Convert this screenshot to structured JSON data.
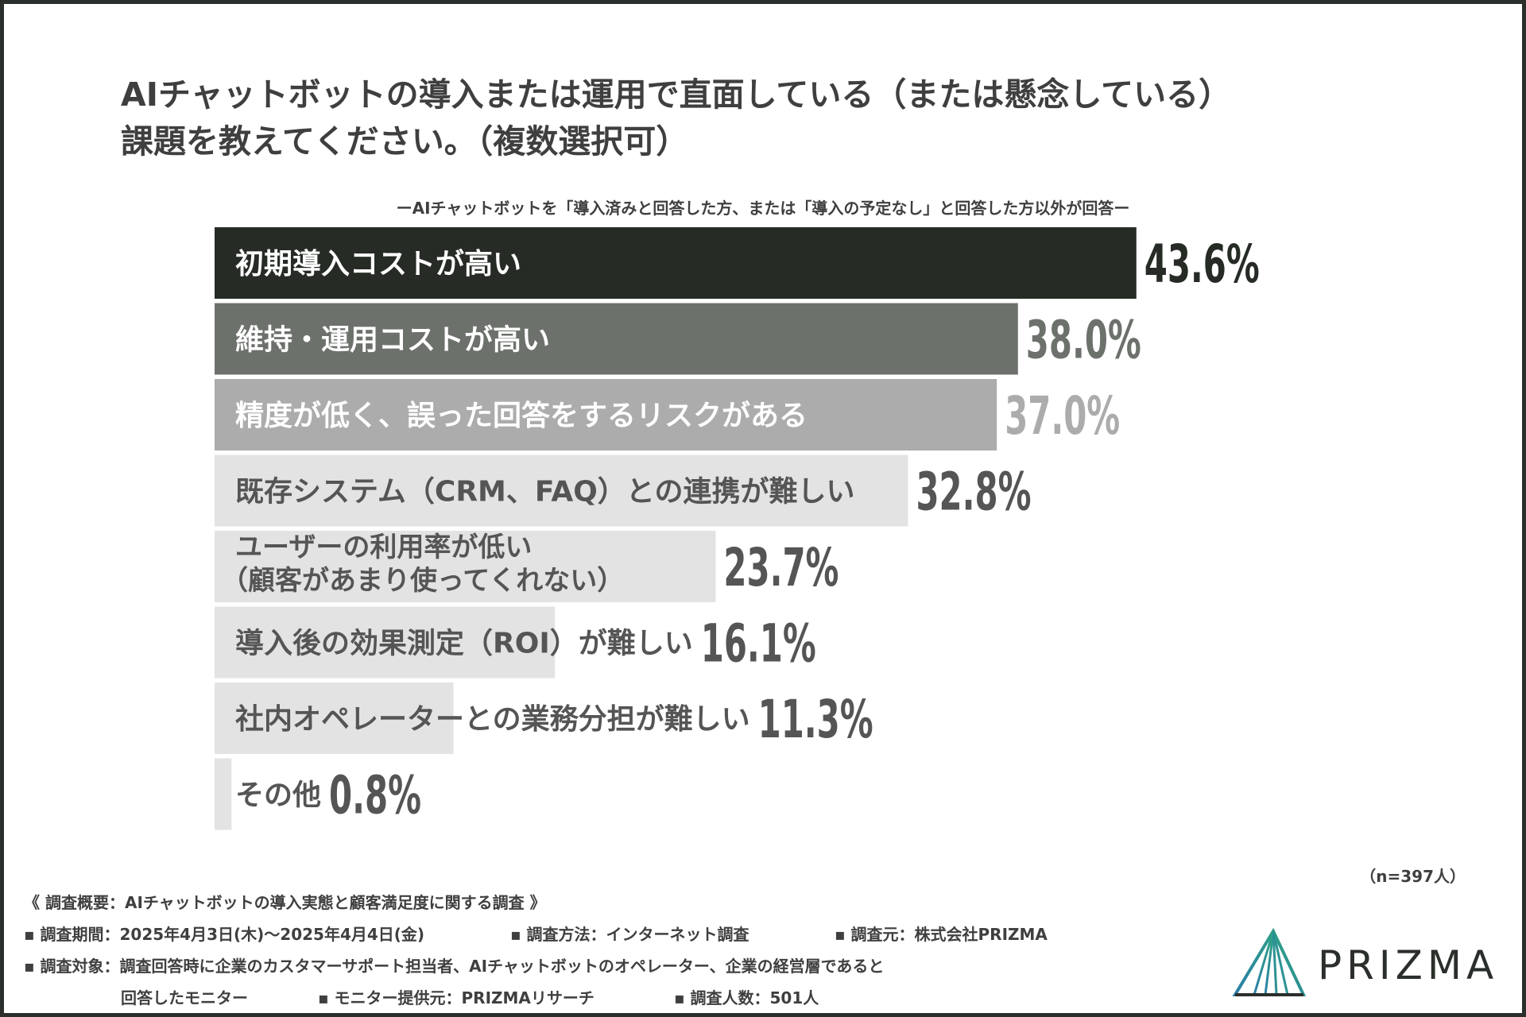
{
  "title": {
    "line1": "AIチャットボットの導入または運用で直面している（または懸念している）",
    "line2": "課題を教えてください。（複数選択可）"
  },
  "subtitle": "ーAIチャットボットを「導入済みと回答した方、または「導入の予定なし」と回答した方以外が回答ー",
  "chart_data": {
    "type": "bar",
    "orientation": "horizontal",
    "unit": "%",
    "xlim": [
      0,
      100
    ],
    "grid": false,
    "categories": [
      [
        "初期導入コストが高い"
      ],
      [
        "維持・運用コストが高い"
      ],
      [
        "精度が低く、誤った回答をするリスクがある"
      ],
      [
        "既存システム（CRM、FAQ）との連携が難しい"
      ],
      [
        "ユーザーの利用率が低い",
        "（顧客があまり使ってくれない）"
      ],
      [
        "導入後の効果測定（ROI）が難しい"
      ],
      [
        "社内オペレーターとの業務分担が難しい"
      ],
      [
        "その他"
      ]
    ],
    "values": [
      43.6,
      38.0,
      37.0,
      32.8,
      23.7,
      16.1,
      11.3,
      0.8
    ],
    "value_labels": [
      "43.6%",
      "38.0%",
      "37.0%",
      "32.8%",
      "23.7%",
      "16.1%",
      "11.3%",
      "0.8%"
    ],
    "bar_colors": [
      "#262b26",
      "#6d716c",
      "#acacac",
      "#e3e3e3",
      "#e3e3e3",
      "#e3e3e3",
      "#e3e3e3",
      "#e3e3e3"
    ],
    "label_colors": [
      "#ffffff",
      "#ffffff",
      "#ffffff",
      "#555555",
      "#555555",
      "#555555",
      "#555555",
      "#555555"
    ],
    "value_colors": [
      "#262b26",
      "#6d716c",
      "#acacac",
      "#555555",
      "#555555",
      "#555555",
      "#555555",
      "#555555"
    ]
  },
  "sample_note": "（n=397人）",
  "footer": {
    "heading": "《 調査概要：AIチャットボットの導入実態と顧客満足度に関する調査 》",
    "period": "▪ 調査期間：2025年4月3日(木)〜2025年4月4日(金)",
    "method": "▪ 調査方法：インターネット調査",
    "source": "▪ 調査元：株式会社PRIZMA",
    "target_line1": "▪ 調査対象：調査回答時に企業のカスタマーサポート担当者、AIチャットボットのオペレーター、企業の経営層であると",
    "target_line2": "回答したモニター",
    "provider": "▪ モニター提供元：PRIZMAリサーチ",
    "count": "▪ 調査人数：501人"
  },
  "logo": {
    "text": "PRIZMA",
    "colors": [
      "#2a7fa8",
      "#2fa57f",
      "#2b2f2b"
    ]
  }
}
